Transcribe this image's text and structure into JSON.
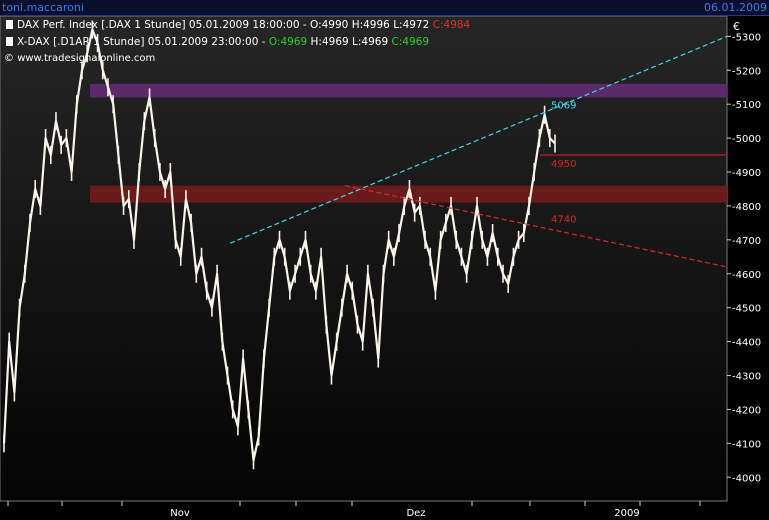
{
  "window": {
    "user": "toni.maccaroni",
    "date": "06.01.2009"
  },
  "legend": {
    "line1": {
      "prefix": "DAX Perf. Index [.DAX  1 Stunde] 05.01.2009 18:00:00 - ",
      "open": "O:4990",
      "high": "H:4996",
      "low": "L:4972",
      "close": "C:4984"
    },
    "line2": {
      "prefix": "X-DAX [.D1AR  1 Stunde] 05.01.2009 23:00:00 - ",
      "open": "O:4969",
      "high": "H:4969",
      "low": "L:4969",
      "close": "C:4969"
    }
  },
  "watermark": "www.tradesignalonline.com",
  "currency": "€",
  "colors": {
    "price": "#f8f4ea",
    "trend_upper": "#40d8e8",
    "trend_lower": "#e02828",
    "resistance_zone": "#5a2a6a",
    "support_zone": "#6a1a1a",
    "level_line": "#e02020",
    "up": "#2fd02f",
    "down": "#e03030"
  },
  "chart_data": {
    "type": "line",
    "ylim": [
      3930,
      5360
    ],
    "y_ticks": [
      4000,
      4100,
      4200,
      4300,
      4400,
      4500,
      4600,
      4700,
      4800,
      4900,
      5000,
      5100,
      5200,
      5300
    ],
    "x_ticks": [
      "Nov",
      "Dez",
      "2009"
    ],
    "series": [
      {
        "values": [
          4100,
          4400,
          4250,
          4500,
          4600,
          4750,
          4850,
          4800,
          5000,
          4950,
          5050,
          4980,
          5000,
          4900,
          5100,
          5200,
          5250,
          5320,
          5280,
          5200,
          5150,
          5100,
          4950,
          4800,
          4820,
          4700,
          4900,
          5050,
          5120,
          5000,
          4900,
          4850,
          4900,
          4700,
          4650,
          4820,
          4750,
          4600,
          4650,
          4550,
          4500,
          4600,
          4400,
          4300,
          4200,
          4150,
          4350,
          4200,
          4050,
          4120,
          4350,
          4500,
          4650,
          4700,
          4650,
          4550,
          4600,
          4650,
          4700,
          4600,
          4550,
          4650,
          4450,
          4300,
          4400,
          4500,
          4600,
          4550,
          4450,
          4400,
          4600,
          4500,
          4350,
          4600,
          4700,
          4650,
          4720,
          4800,
          4850,
          4780,
          4800,
          4700,
          4650,
          4550,
          4700,
          4750,
          4800,
          4700,
          4650,
          4600,
          4700,
          4800,
          4700,
          4650,
          4720,
          4650,
          4600,
          4570,
          4650,
          4700,
          4720,
          4800,
          4900,
          5000,
          5069,
          5000,
          4984
        ]
      }
    ],
    "annotations": [
      {
        "type": "trendline",
        "color": "trend_upper",
        "x_index": [
          61,
          195
        ],
        "y": [
          4690,
          5300
        ]
      },
      {
        "type": "trendline",
        "color": "trend_lower",
        "x_index": [
          92,
          195
        ],
        "y": [
          4860,
          4620
        ]
      },
      {
        "type": "zone",
        "color": "resistance_zone",
        "y": [
          5120,
          5160
        ]
      },
      {
        "type": "zone",
        "color": "support_zone",
        "y": [
          4810,
          4860
        ]
      },
      {
        "type": "level",
        "label": "4950",
        "value": 4950
      },
      {
        "type": "label",
        "text": "5069",
        "value": 5069,
        "color": "trend_upper"
      },
      {
        "type": "label",
        "text": "4740",
        "value": 4740,
        "color": "trend_lower"
      }
    ]
  }
}
